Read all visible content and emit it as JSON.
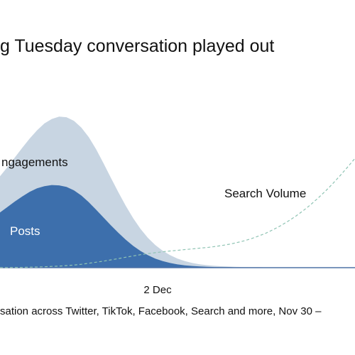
{
  "title": "g Tuesday conversation played out",
  "caption": "sation across Twitter, TikTok, Facebook, Search and more, Nov 30 –",
  "colors": {
    "engagements": "#c8d5e2",
    "posts": "#3d6fac",
    "search_volume": "#8ec3b3",
    "baseline": "#4e72a6",
    "text": "#111111",
    "label_on_fill": "#ffffff"
  },
  "chart_data": {
    "type": "area",
    "title": "g Tuesday conversation played out",
    "x_tick_labels": [
      "2 Dec"
    ],
    "x": [
      -0.4,
      -0.3,
      -0.2,
      -0.1,
      0.0,
      0.1,
      0.2,
      0.3,
      0.4,
      0.5,
      0.6,
      0.7,
      0.8,
      0.9,
      1.0,
      1.1,
      1.2,
      1.3,
      1.4,
      1.5,
      1.6,
      1.7,
      1.8,
      1.9,
      2.0,
      2.1,
      2.2,
      2.3,
      2.4,
      2.5,
      2.6,
      2.7,
      2.8,
      2.9,
      3.0,
      3.1,
      3.2,
      3.3,
      3.4,
      3.5,
      3.6,
      3.7,
      3.8,
      3.9,
      4.0,
      4.1,
      4.2,
      4.3,
      4.4
    ],
    "xlim": [
      -0.4,
      4.4
    ],
    "ylim": [
      0,
      100
    ],
    "series": [
      {
        "name": "Engagements",
        "values": [
          58.5,
          64.3,
          70.5,
          76.7,
          82.6,
          87.9,
          92.3,
          95.2,
          96.7,
          96.3,
          94.0,
          89.7,
          83.6,
          75.8,
          66.8,
          57.5,
          48.3,
          39.6,
          31.7,
          24.8,
          19.1,
          14.5,
          10.8,
          8.0,
          5.8,
          4.2,
          3.0,
          2.2,
          1.6,
          1.2,
          0.9,
          0.7,
          0.5,
          0.4,
          0.3,
          0.3,
          0.2,
          0.2,
          0.2,
          0.1,
          0.1,
          0.1,
          0.1,
          0.1,
          0.1,
          0.1,
          0.1,
          0.1,
          0.1
        ]
      },
      {
        "name": "Posts",
        "values": [
          35.3,
          38.8,
          42.3,
          45.6,
          48.5,
          50.8,
          52.2,
          52.9,
          52.7,
          51.7,
          49.5,
          46.2,
          41.9,
          37.1,
          32.1,
          27.1,
          22.3,
          17.9,
          14.0,
          10.7,
          8.0,
          5.8,
          4.2,
          3.0,
          2.1,
          1.5,
          1.1,
          0.8,
          0.6,
          0.4,
          0.3,
          0.3,
          0.2,
          0.2,
          0.2,
          0.1,
          0.1,
          0.1,
          0.1,
          0.1,
          0.1,
          0.1,
          0.1,
          0.1,
          0.1,
          0.1,
          0.1,
          0.1,
          0.1
        ]
      },
      {
        "name": "Search Volume",
        "values": [
          0.1,
          0.1,
          0.2,
          0.2,
          0.3,
          0.4,
          0.6,
          0.8,
          1.0,
          1.3,
          1.7,
          2.2,
          2.8,
          3.5,
          4.2,
          5.0,
          5.8,
          6.7,
          7.5,
          8.3,
          9.0,
          9.6,
          10.2,
          10.7,
          11.1,
          11.6,
          12.0,
          12.5,
          12.9,
          13.5,
          14.2,
          15.0,
          16.0,
          17.2,
          18.6,
          20.3,
          22.2,
          24.5,
          27.0,
          29.9,
          33.0,
          36.5,
          40.3,
          44.5,
          49.0,
          53.8,
          59.0,
          64.4,
          70.0
        ]
      }
    ],
    "labels": {
      "engagements": "ngagements",
      "posts": "Posts",
      "search_volume": "Search Volume"
    },
    "grid": false,
    "legend": "direct labels on areas"
  }
}
